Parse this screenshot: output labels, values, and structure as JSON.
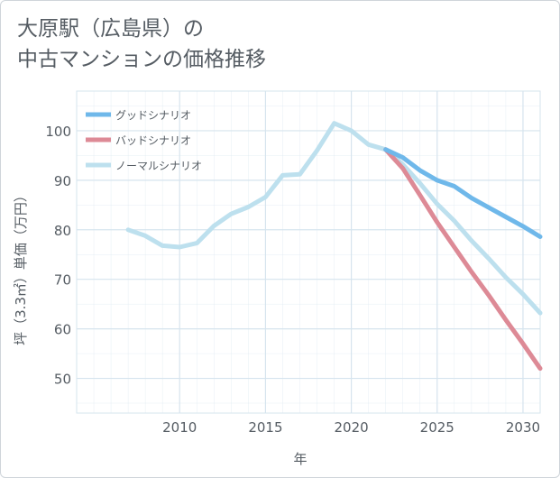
{
  "title_line1": "大原駅（広島県）の",
  "title_line2": "中古マンションの価格推移",
  "colors": {
    "good": "#6fb8ea",
    "bad": "#dd8a96",
    "normal": "#bde0ee",
    "grid": "#d6e4ee",
    "text": "#555c63"
  },
  "chart_data": {
    "type": "line",
    "title": "大原駅（広島県）の中古マンションの価格推移",
    "xlabel": "年",
    "ylabel": "坪（3.3㎡）単価（万円）",
    "xlim": [
      2004,
      2031
    ],
    "ylim": [
      43,
      108
    ],
    "x_ticks": [
      2010,
      2015,
      2020,
      2025,
      2030
    ],
    "y_ticks": [
      50,
      60,
      70,
      80,
      90,
      100
    ],
    "grid": true,
    "legend_position": "top-left",
    "series": [
      {
        "name": "グッドシナリオ",
        "color": "#6fb8ea",
        "x": [
          2022,
          2023,
          2024,
          2025,
          2026,
          2027,
          2028,
          2029,
          2030,
          2031
        ],
        "y": [
          96.2,
          94.6,
          92.0,
          90.0,
          88.8,
          86.4,
          84.5,
          82.6,
          80.7,
          78.6
        ]
      },
      {
        "name": "バッドシナリオ",
        "color": "#dd8a96",
        "x": [
          2022,
          2023,
          2024,
          2025,
          2026,
          2027,
          2028,
          2029,
          2030,
          2031
        ],
        "y": [
          96.2,
          92.4,
          87.0,
          81.5,
          76.5,
          71.5,
          66.8,
          61.8,
          57.0,
          52.0
        ]
      },
      {
        "name": "ノーマルシナリオ",
        "color": "#bde0ee",
        "x": [
          2007,
          2008,
          2009,
          2010,
          2011,
          2012,
          2013,
          2014,
          2015,
          2016,
          2017,
          2018,
          2019,
          2020,
          2021,
          2022,
          2023,
          2024,
          2025,
          2026,
          2027,
          2028,
          2029,
          2030,
          2031
        ],
        "y": [
          80.0,
          78.8,
          76.8,
          76.5,
          77.3,
          80.8,
          83.2,
          84.6,
          86.6,
          91.0,
          91.2,
          96.0,
          101.5,
          100.0,
          97.2,
          96.2,
          93.2,
          89.4,
          85.2,
          81.8,
          77.8,
          74.2,
          70.4,
          67.0,
          63.2
        ]
      }
    ]
  }
}
